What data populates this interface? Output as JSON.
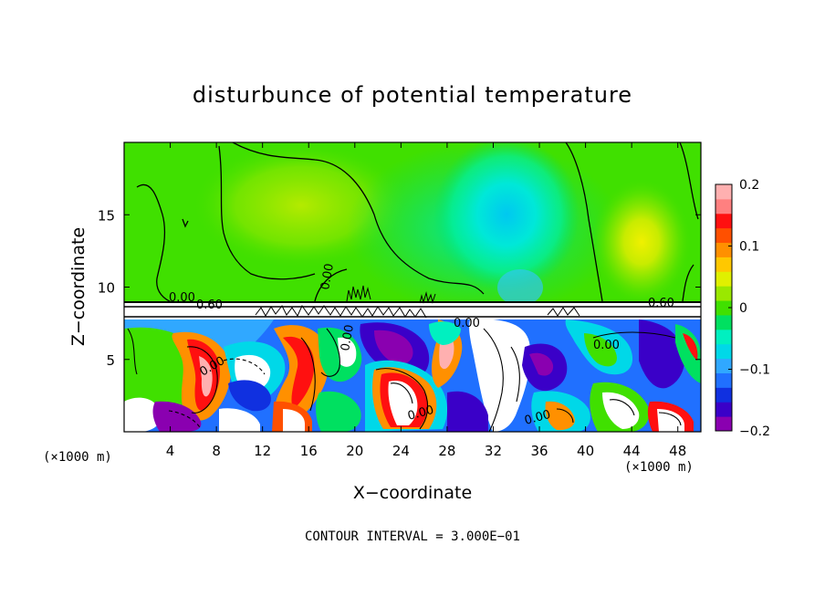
{
  "chart_data": {
    "type": "heatmap",
    "title": "disturbunce of potential temperature",
    "xlabel": "X−coordinate",
    "ylabel": "Z−coordinate",
    "xlim": [
      0,
      50
    ],
    "ylim": [
      0,
      20
    ],
    "x_ticks": [
      4,
      8,
      12,
      16,
      20,
      24,
      28,
      32,
      36,
      40,
      44,
      48
    ],
    "y_ticks": [
      5,
      10,
      15
    ],
    "x_unit_left": "(×1000 m)",
    "x_unit_right": "(×1000 m)",
    "footer": "CONTOUR INTERVAL = 3.000E−01",
    "colorbar": {
      "range": [
        -0.2,
        0.2
      ],
      "tick_labels": [
        "0.2",
        "0.1",
        "0",
        "−0.1",
        "−0.2"
      ],
      "tick_values": [
        0.2,
        0.1,
        0,
        -0.1,
        -0.2
      ],
      "colors": [
        "#8a00b0",
        "#3a00c8",
        "#1030e0",
        "#2070ff",
        "#30a8ff",
        "#00d8e8",
        "#00f0c0",
        "#00e060",
        "#40e000",
        "#9ae800",
        "#e0f000",
        "#ffc800",
        "#ff9000",
        "#ff5000",
        "#ff1010",
        "#ff8080",
        "#ffb0b0"
      ]
    },
    "contour_labels": [
      {
        "text": "0.00",
        "x": 6.0,
        "z": 9.5
      },
      {
        "text": "0.60",
        "x": 8.0,
        "z": 8.8
      },
      {
        "text": "0.60",
        "x": 46.5,
        "z": 8.8
      },
      {
        "text": "0.00",
        "x": 17.8,
        "z": 11.3
      },
      {
        "text": "0.00",
        "x": 19.0,
        "z": 6.5
      },
      {
        "text": "0.00",
        "x": 7.8,
        "z": 4.2
      },
      {
        "text": "0.00",
        "x": 30.5,
        "z": 7.6
      },
      {
        "text": "0.00",
        "x": 41.6,
        "z": 6.0
      },
      {
        "text": "0.00",
        "x": 25.0,
        "z": 1.5
      },
      {
        "text": "0.00",
        "x": 35.5,
        "z": 1.3
      }
    ],
    "grid": false,
    "legend": "colorbar-right"
  }
}
